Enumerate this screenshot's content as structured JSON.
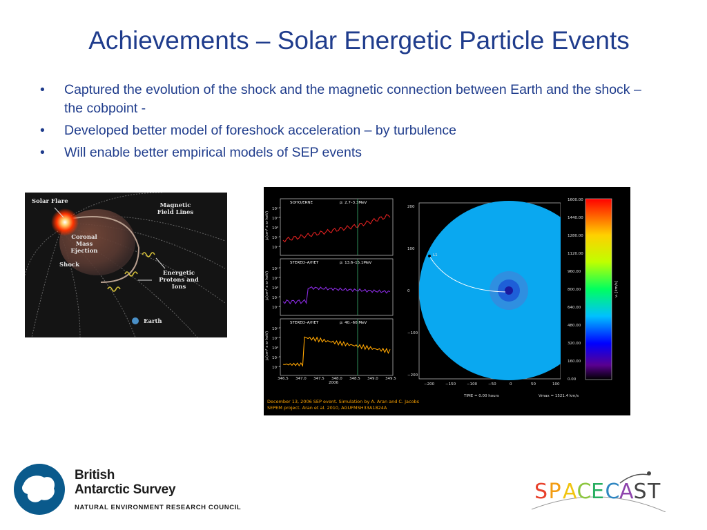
{
  "title": "Achievements – Solar Energetic Particle Events",
  "bullets": [
    "Captured the evolution of the shock and the magnetic connection between Earth and the shock – the cobpoint -",
    "Developed better model of foreshock acceleration – by turbulence",
    "Will enable better empirical models of SEP events"
  ],
  "bullet_marker": "•",
  "cme_figure": {
    "labels": {
      "solar_flare": "Solar Flare",
      "magnetic_field_lines": "Magnetic Field Lines",
      "coronal_mass_ejection": "Coronal Mass Ejection",
      "shock": "Shock",
      "energetic_particles": "Energetic Protons and Ions",
      "earth": "Earth"
    }
  },
  "sep_figure": {
    "panels": [
      {
        "instrument": "SOHO/ERNE",
        "range": "p: 2.7–3.3MeV",
        "color": "#e02020"
      },
      {
        "instrument": "STEREO–A/HET",
        "range": "p: 13.6–15.1MeV",
        "color": "#8a2be2"
      },
      {
        "instrument": "STEREO–A/HET",
        "range": "p: 40.–60.MeV",
        "color": "#ffa500"
      }
    ],
    "y_axis_label": "jₚ(cm² s sr keV)",
    "y_ticks": [
      "10⁺²",
      "10⁺¹",
      "10⁰",
      "10⁻¹",
      "10⁻²",
      "10⁻³"
    ],
    "x_ticks": [
      "346.5",
      "347.0",
      "347.5",
      "348.0",
      "348.5",
      "349.0",
      "349.5"
    ],
    "x_year": "2006",
    "map_x_ticks": [
      "−200",
      "−150",
      "−100",
      "−50",
      "0",
      "50",
      "100"
    ],
    "map_y_ticks": [
      "200",
      "100",
      "0",
      "−100",
      "−200"
    ],
    "l1_label": "L1",
    "time_label": "TIME = 0.00 hours",
    "vmax_label": "Vmax = 1521.4 km/s",
    "colorbar_ticks": [
      "1600.00",
      "1440.00",
      "1280.00",
      "1120.00",
      "960.00",
      "800.00",
      "640.00",
      "480.00",
      "320.00",
      "160.00",
      "0.00"
    ],
    "colorbar_unit": "vᵣ [km/s]",
    "caption": [
      "December 13, 2006 SEP event. Simulation by A. Aran and C. Jacobs",
      "SEPEM project. Aran et al. 2010, AGUFMSH33A1824A"
    ]
  },
  "bas_logo": {
    "name_line1": "British",
    "name_line2": "Antarctic Survey",
    "subtitle": "NATURAL ENVIRONMENT RESEARCH COUNCIL"
  },
  "spacecast_logo": {
    "letters": [
      "S",
      "P",
      "A",
      "C",
      "E",
      "C",
      "A",
      "S",
      "T"
    ],
    "letter_colors": [
      "#e8412c",
      "#f39c12",
      "#f1c40f",
      "#8cc63f",
      "#27ae60",
      "#2e86c1",
      "#8e44ad",
      "#444444",
      "#444444"
    ]
  }
}
